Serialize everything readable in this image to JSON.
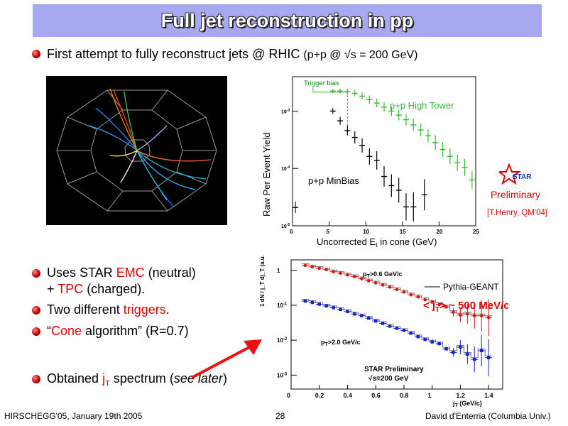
{
  "slide": {
    "title": "Full jet reconstruction in pp",
    "bullet1": {
      "text": "First attempt to fully reconstruct jets @ RHIC",
      "sub": "(p+p @ √s = 200 GeV)"
    },
    "bullet2": {
      "pre": "Uses STAR ",
      "emc": "EMC",
      "mid": " (neutral)",
      "line2_pre": "+ ",
      "tpc": "TPC",
      "line2_post": " (charged)."
    },
    "bullet3": {
      "pre": "Two different ",
      "red": "triggers",
      "post": "."
    },
    "bullet4": {
      "pre": "“",
      "red": "Cone",
      "post": " algorithm” (R=0.7)"
    },
    "bullet5": {
      "pre": "Obtained ",
      "red": "j",
      "red_sub": "T",
      "mid": " spectrum (",
      "italic": "see later",
      "post": ")"
    },
    "footer": {
      "left": "HIRSCHEGG'05, January 19th 2005",
      "center": "28",
      "right": "David d'Enterria (Columbia Univ.)"
    },
    "star_logo": "STAR",
    "preliminary": "Preliminary",
    "citation": "[T.Henry, QM'04]",
    "colors": {
      "accent_red": "#dd0000",
      "title_bar": "#a8a8f0",
      "high_tower": "#33bb33"
    }
  },
  "chart_data": [
    {
      "type": "scatter",
      "ylabel": "Raw Per Event Yield",
      "xlabel": "Uncorrected E",
      "xlabel_sub": "t",
      "xlabel_post": " in cone (GeV)",
      "xlim": [
        0,
        25
      ],
      "ylim_log10": [
        -5,
        -2.4
      ],
      "yscale": "log",
      "x_ticks": [
        "0",
        "5",
        "10",
        "15",
        "20",
        "25"
      ],
      "y_ticks": [
        {
          "base": "10",
          "exp": "-3"
        },
        {
          "base": "10",
          "exp": "-4"
        },
        {
          "base": "10",
          "exp": "-5"
        }
      ],
      "annotation": "Trigger bias",
      "series": [
        {
          "name": "p+p High Tower",
          "x": [
            5.5,
            6.5,
            7.5,
            8.5,
            9.5,
            10.5,
            11.5,
            12.5,
            13.5,
            14.5,
            15.5,
            16.5,
            17.5,
            18.5,
            19.5,
            20.5,
            21.5,
            22.5,
            23.5,
            24.5
          ],
          "log10y": [
            -2.65,
            -2.65,
            -2.66,
            -2.69,
            -2.74,
            -2.8,
            -2.86,
            -2.93,
            -3.0,
            -3.07,
            -3.15,
            -3.24,
            -3.33,
            -3.43,
            -3.55,
            -3.67,
            -3.79,
            -3.9,
            -3.98,
            -4.2
          ],
          "values_text": [
            "2.2e-3",
            "2.2e-3",
            "2.2e-3",
            "2.0e-3",
            "1.8e-3",
            "1.6e-3",
            "1.4e-3",
            "1.2e-3",
            "1.0e-3",
            "8.5e-4",
            "7.1e-4",
            "5.8e-4",
            "4.7e-4",
            "3.7e-4",
            "2.8e-4",
            "2.1e-4",
            "1.6e-4",
            "1.3e-4",
            "1.0e-4",
            "6.3e-5"
          ]
        },
        {
          "name": "p+p MinBias",
          "x": [
            5.5,
            6.5,
            7.5,
            8.5,
            9.5,
            10.5,
            11.5,
            12.5,
            13.5,
            14.5,
            15.5,
            16.5,
            18.0
          ],
          "log10y": [
            -3.0,
            -3.17,
            -3.34,
            -3.46,
            -3.6,
            -3.79,
            -3.86,
            -4.14,
            -4.3,
            -4.38,
            -4.67,
            -4.67,
            -4.46
          ],
          "values_text": [
            "1.0e-3",
            "6.8e-4",
            "4.6e-4",
            "3.5e-4",
            "2.5e-4",
            "1.6e-4",
            "1.4e-4",
            "7.2e-5",
            "5.0e-5",
            "4.2e-5",
            "2.1e-5",
            "2.1e-5",
            "3.5e-5"
          ]
        }
      ],
      "extra_point": {
        "x": 0.4,
        "log10y": -4.68
      }
    },
    {
      "type": "scatter",
      "ylabel": "1 dN / j_T dj_T (a.u.)",
      "xlabel": "j",
      "xlabel_sub": "T",
      "xlabel_post": " (GeV/c)",
      "xlim": [
        0,
        1.5
      ],
      "ylim_log10": [
        -3.4,
        0.3
      ],
      "yscale": "log",
      "x_ticks": [
        "0",
        "0.2",
        "0.4",
        "0.6",
        "0.8",
        "1",
        "1.2",
        "1.4"
      ],
      "y_ticks": [
        {
          "base": "1",
          "exp": ""
        },
        {
          "base": "10",
          "exp": "-1"
        },
        {
          "base": "10",
          "exp": "-2"
        },
        {
          "base": "10",
          "exp": "-3"
        }
      ],
      "legend": "Pythia-GEANT",
      "mean_label": "< j",
      "mean_sub": "T",
      "mean_post": "> ~ 500 MeV/c",
      "label_top": "p",
      "label_top_sub": "T",
      "label_top_post": ">0.6 GeV/c",
      "label_bottom": "p",
      "label_bottom_sub": "T",
      "label_bottom_post": ">2.0 GeV/c",
      "preliminary_line1": "STAR Preliminary",
      "preliminary_line2": "√s=200 GeV",
      "series": [
        {
          "name": "p",
          "x": [
            0.1,
            0.15,
            0.2,
            0.25,
            0.3,
            0.35,
            0.4,
            0.45,
            0.5,
            0.55,
            0.6,
            0.65,
            0.7,
            0.75,
            0.8,
            0.85,
            0.9,
            0.95,
            1.0,
            1.05,
            1.1,
            1.15,
            1.2,
            1.25,
            1.3,
            1.35,
            1.4
          ],
          "log10y": [
            0.14,
            0.1,
            0.06,
            0.02,
            -0.04,
            -0.08,
            -0.13,
            -0.18,
            -0.24,
            -0.3,
            -0.36,
            -0.42,
            -0.48,
            -0.55,
            -0.62,
            -0.7,
            -0.76,
            -0.84,
            -0.91,
            -0.98,
            -1.05,
            -1.2,
            -1.28,
            -1.25,
            -1.3,
            -1.3,
            -1.35
          ]
        },
        {
          "name": "p",
          "x": [
            0.1,
            0.15,
            0.2,
            0.25,
            0.3,
            0.35,
            0.4,
            0.45,
            0.5,
            0.55,
            0.6,
            0.65,
            0.7,
            0.75,
            0.8,
            0.85,
            0.9,
            0.95,
            1.0,
            1.05,
            1.1,
            1.15,
            1.2,
            1.25,
            1.3,
            1.35,
            1.4
          ],
          "log10y": [
            -0.88,
            -0.92,
            -0.97,
            -1.02,
            -1.07,
            -1.12,
            -1.18,
            -1.25,
            -1.3,
            -1.37,
            -1.45,
            -1.52,
            -1.6,
            -1.66,
            -1.72,
            -1.8,
            -1.9,
            -1.98,
            -2.05,
            -2.1,
            -2.25,
            -2.35,
            -2.2,
            -2.4,
            -2.55,
            -2.3,
            -2.5
          ]
        }
      ]
    }
  ]
}
